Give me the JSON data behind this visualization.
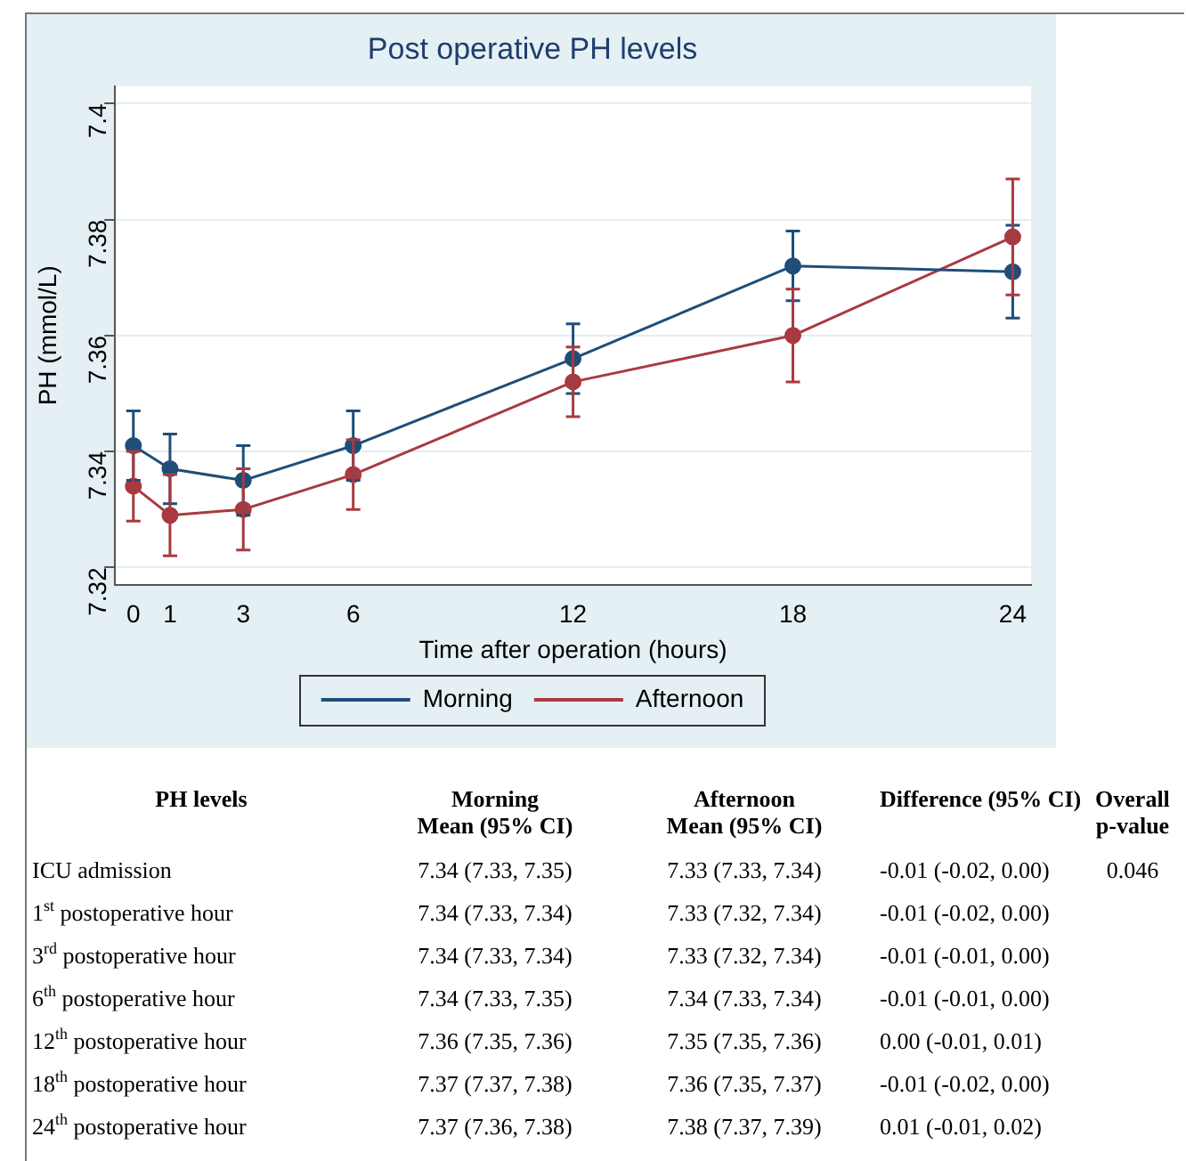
{
  "chart_data": {
    "type": "line",
    "title": "Post operative PH levels",
    "xlabel": "Time after operation (hours)",
    "ylabel": "PH (mmol/L)",
    "x": [
      0,
      1,
      3,
      6,
      12,
      18,
      24
    ],
    "series": [
      {
        "name": "Morning",
        "color": "#1f4e79",
        "values": [
          7.341,
          7.337,
          7.335,
          7.341,
          7.356,
          7.372,
          7.371
        ],
        "errors": [
          0.006,
          0.006,
          0.006,
          0.006,
          0.006,
          0.006,
          0.008
        ]
      },
      {
        "name": "Afternoon",
        "color": "#a83a40",
        "values": [
          7.334,
          7.329,
          7.33,
          7.336,
          7.352,
          7.36,
          7.377
        ],
        "errors": [
          0.006,
          0.007,
          0.007,
          0.006,
          0.006,
          0.008,
          0.01
        ]
      }
    ],
    "xlim": [
      -0.5,
      24.5
    ],
    "xticks": [
      0,
      1,
      3,
      6,
      12,
      18,
      24
    ],
    "ylim": [
      7.317,
      7.403
    ],
    "yticks": [
      7.32,
      7.34,
      7.36,
      7.38,
      7.4
    ],
    "grid": "y",
    "legend": "bottom",
    "marker": "circle",
    "annotations": [
      "PH levels",
      "Morning\nMean (95% CI)",
      "Afternoon\nMean (95% CI)",
      "Difference (95% CI)",
      "Overall p-value",
      "ICU admission",
      "7.34 (7.33, 7.35)",
      "7.33 (7.33, 7.34)",
      "-0.01 (-0.02, 0.00)",
      "0.046",
      "1$^{st}$ postoperative hour",
      "7.34 (7.33, 7.34)",
      "7.33 (7.32, 7.34)",
      "-0.01 (-0.02, 0.00)",
      "3$^{rd}$ postoperative hour",
      "7.34 (7.33, 7.34)",
      "7.33 (7.32, 7.34)",
      "-0.01 (-0.01, 0.00)",
      "6$^{th}$ postoperative hour",
      "7.34 (7.33, 7.35)",
      "7.34 (7.33, 7.34)",
      "-0.01 (-0.01, 0.00)",
      "12$^{th}$ postoperative hour",
      "7.36 (7.35, 7.36)",
      "7.35 (7.35, 7.36)",
      "0.00 (-0.01, 0.01)",
      "18$^{th}$ postoperative hour",
      "7.37 (7.37, 7.38)",
      "7.36 (7.35, 7.37)",
      "-0.01 (-0.02, 0.00)",
      "24$^{th}$ postoperative hour",
      "7.37 (7.36, 7.38)",
      "7.38 (7.37, 7.39)",
      "0.01 (-0.01, 0.02)"
    ]
  }
}
